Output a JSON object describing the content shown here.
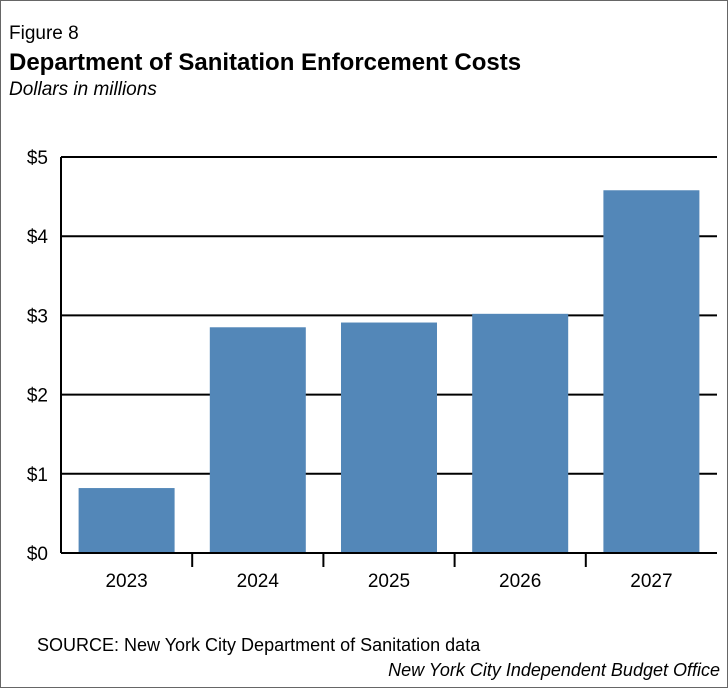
{
  "figure_label": "Figure 8",
  "title": "Department of Sanitation Enforcement Costs",
  "subtitle": "Dollars in millions",
  "source": "SOURCE: New York City Department of Sanitation data",
  "credit": "New York City Independent Budget Office",
  "colors": {
    "bar": "#5387b8",
    "gridline": "#000000",
    "border": "#666666"
  },
  "chart_data": {
    "type": "bar",
    "categories": [
      "2023",
      "2024",
      "2025",
      "2026",
      "2027"
    ],
    "values": [
      0.82,
      2.85,
      2.91,
      3.02,
      4.58
    ],
    "ylim": [
      0,
      5
    ],
    "y_ticks": [
      0,
      1,
      2,
      3,
      4,
      5
    ],
    "y_tick_labels": [
      "$0",
      "$1",
      "$2",
      "$3",
      "$4",
      "$5"
    ],
    "grid": true,
    "legend": "none"
  }
}
